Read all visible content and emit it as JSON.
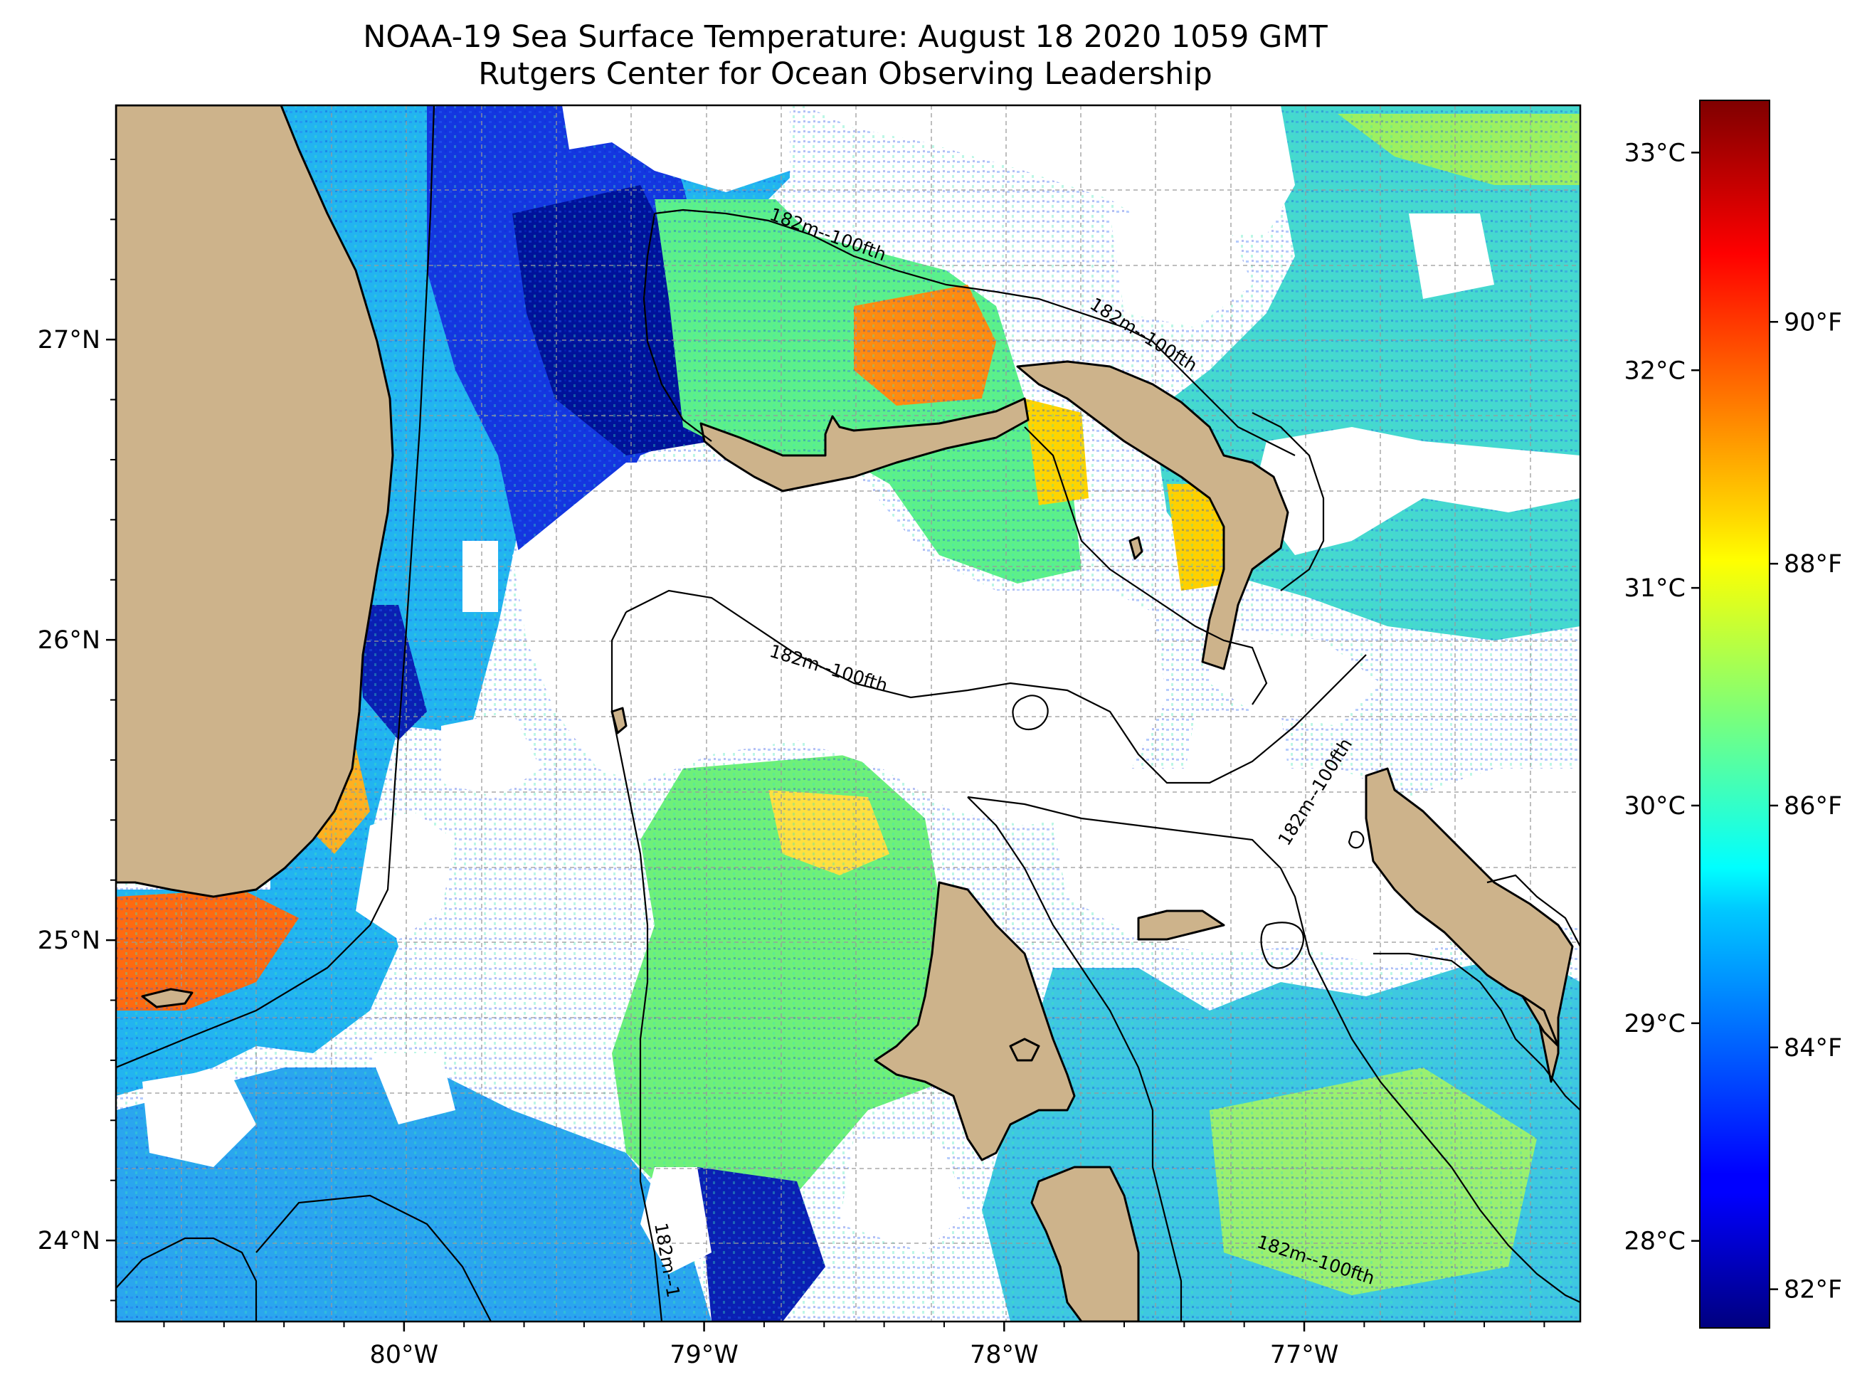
{
  "title": {
    "line1": "NOAA-19 Sea Surface Temperature: August 18 2020 1059 GMT",
    "line2": "Rutgers Center for Ocean Observing Leadership"
  },
  "map": {
    "lon_range": [
      -80.96,
      -76.08
    ],
    "lat_range": [
      23.73,
      27.78
    ],
    "gridlines": true,
    "land_color": "#cdb38b",
    "no_data_color": "#ffffff"
  },
  "axes": {
    "lat_ticks": [
      {
        "value": 27,
        "label": "27°N"
      },
      {
        "value": 26,
        "label": "26°N"
      },
      {
        "value": 25,
        "label": "25°N"
      },
      {
        "value": 24,
        "label": "24°N"
      }
    ],
    "lon_ticks": [
      {
        "value": -80,
        "label": "80°W"
      },
      {
        "value": -79,
        "label": "79°W"
      },
      {
        "value": -78,
        "label": "78°W"
      },
      {
        "value": -77,
        "label": "77°W"
      }
    ]
  },
  "contours": {
    "label": "182m--100fth",
    "label_short": "182m--1"
  },
  "colorbar": {
    "colormap": "jet",
    "range_c": [
      27.6,
      33.24
    ],
    "celsius_ticks": [
      {
        "value": 28,
        "label": "28°C"
      },
      {
        "value": 29,
        "label": "29°C"
      },
      {
        "value": 30,
        "label": "30°C"
      },
      {
        "value": 31,
        "label": "31°C"
      },
      {
        "value": 32,
        "label": "32°C"
      },
      {
        "value": 33,
        "label": "33°C"
      }
    ],
    "fahrenheit_ticks": [
      {
        "value": 82,
        "label": "82°F"
      },
      {
        "value": 84,
        "label": "84°F"
      },
      {
        "value": 86,
        "label": "86°F"
      },
      {
        "value": 88,
        "label": "88°F"
      },
      {
        "value": 90,
        "label": "90°F"
      }
    ]
  }
}
